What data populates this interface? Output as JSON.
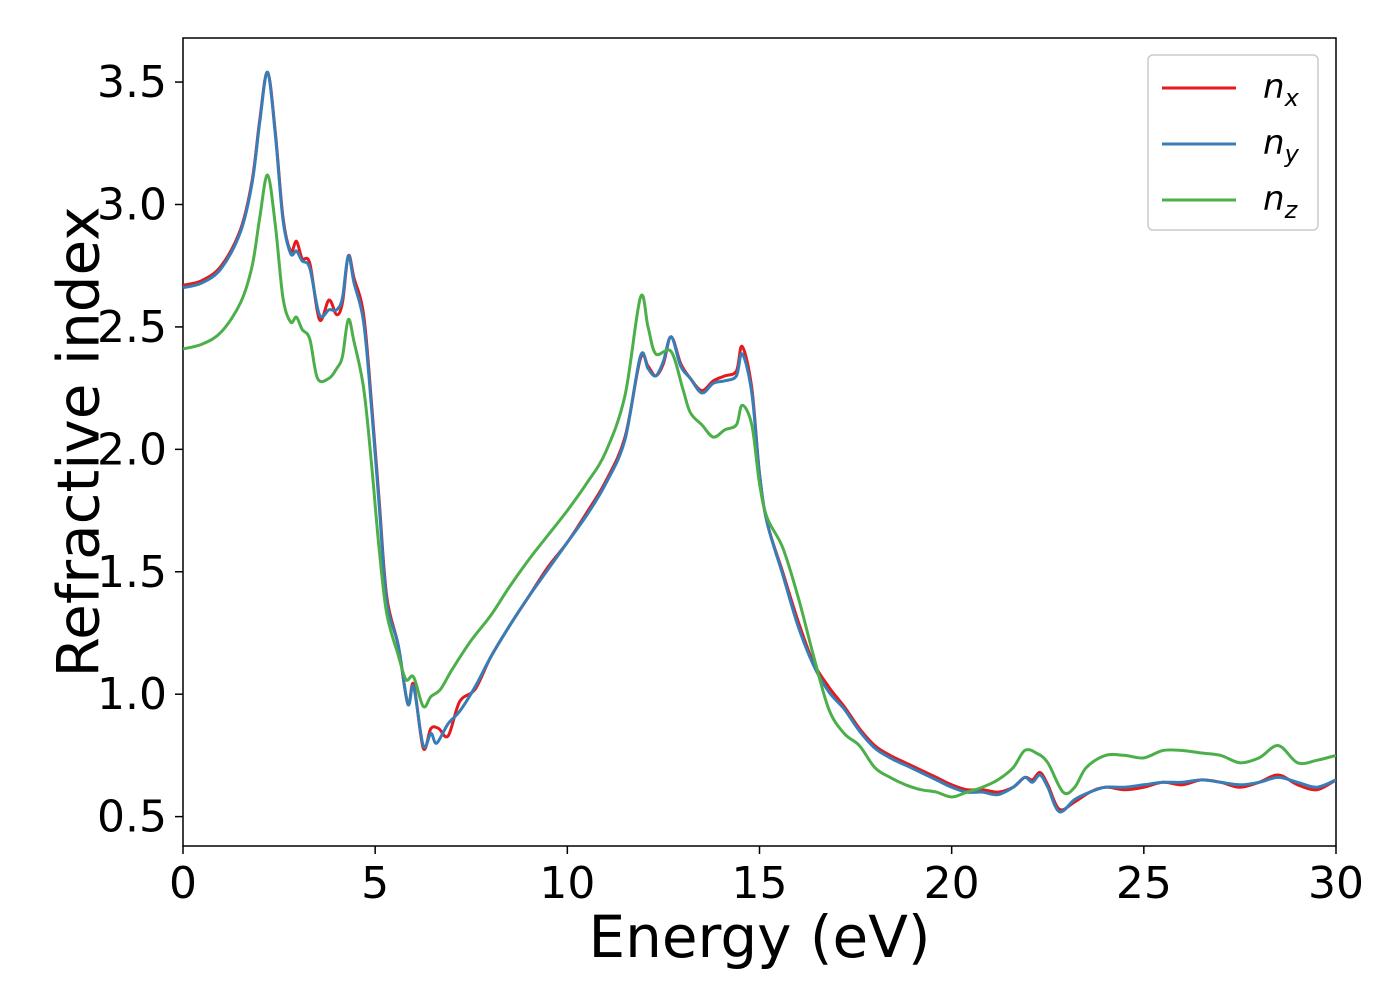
{
  "chart_data": {
    "type": "line",
    "title": "",
    "xlabel": "Energy (eV)",
    "ylabel": "Refractive index",
    "xlim": [
      0,
      30
    ],
    "ylim": [
      0.38,
      3.68
    ],
    "xticks": [
      0,
      5,
      10,
      15,
      20,
      25,
      30
    ],
    "yticks": [
      0.5,
      1.0,
      1.5,
      2.0,
      2.5,
      3.0,
      3.5
    ],
    "grid": false,
    "legend_position": "top-right",
    "series": [
      {
        "name": "n",
        "subscript": "x",
        "color": "#e41a1c",
        "points": [
          [
            0,
            2.67
          ],
          [
            0.5,
            2.69
          ],
          [
            1.0,
            2.75
          ],
          [
            1.5,
            2.9
          ],
          [
            1.8,
            3.1
          ],
          [
            2.0,
            3.35
          ],
          [
            2.2,
            3.54
          ],
          [
            2.4,
            3.3
          ],
          [
            2.6,
            2.95
          ],
          [
            2.8,
            2.81
          ],
          [
            2.95,
            2.85
          ],
          [
            3.1,
            2.78
          ],
          [
            3.3,
            2.76
          ],
          [
            3.55,
            2.53
          ],
          [
            3.8,
            2.61
          ],
          [
            4.0,
            2.55
          ],
          [
            4.15,
            2.6
          ],
          [
            4.3,
            2.79
          ],
          [
            4.45,
            2.7
          ],
          [
            4.7,
            2.55
          ],
          [
            4.9,
            2.2
          ],
          [
            5.1,
            1.8
          ],
          [
            5.3,
            1.4
          ],
          [
            5.6,
            1.2
          ],
          [
            5.85,
            0.96
          ],
          [
            6.0,
            1.04
          ],
          [
            6.25,
            0.78
          ],
          [
            6.45,
            0.86
          ],
          [
            6.65,
            0.86
          ],
          [
            6.9,
            0.83
          ],
          [
            7.2,
            0.97
          ],
          [
            7.6,
            1.02
          ],
          [
            8.0,
            1.15
          ],
          [
            8.5,
            1.28
          ],
          [
            9.0,
            1.4
          ],
          [
            9.5,
            1.52
          ],
          [
            10.0,
            1.62
          ],
          [
            10.5,
            1.74
          ],
          [
            11.0,
            1.87
          ],
          [
            11.5,
            2.05
          ],
          [
            11.9,
            2.37
          ],
          [
            12.1,
            2.34
          ],
          [
            12.3,
            2.3
          ],
          [
            12.5,
            2.35
          ],
          [
            12.7,
            2.46
          ],
          [
            12.95,
            2.35
          ],
          [
            13.2,
            2.29
          ],
          [
            13.5,
            2.24
          ],
          [
            13.8,
            2.28
          ],
          [
            14.1,
            2.3
          ],
          [
            14.4,
            2.32
          ],
          [
            14.55,
            2.42
          ],
          [
            14.8,
            2.25
          ],
          [
            15.0,
            1.9
          ],
          [
            15.2,
            1.7
          ],
          [
            15.6,
            1.5
          ],
          [
            16.0,
            1.3
          ],
          [
            16.4,
            1.13
          ],
          [
            16.8,
            1.03
          ],
          [
            17.2,
            0.95
          ],
          [
            17.6,
            0.86
          ],
          [
            18.0,
            0.79
          ],
          [
            18.4,
            0.75
          ],
          [
            18.8,
            0.72
          ],
          [
            19.2,
            0.69
          ],
          [
            19.6,
            0.66
          ],
          [
            20.0,
            0.63
          ],
          [
            20.4,
            0.61
          ],
          [
            20.8,
            0.61
          ],
          [
            21.2,
            0.6
          ],
          [
            21.6,
            0.62
          ],
          [
            21.9,
            0.66
          ],
          [
            22.1,
            0.65
          ],
          [
            22.3,
            0.68
          ],
          [
            22.5,
            0.63
          ],
          [
            22.8,
            0.53
          ],
          [
            23.2,
            0.56
          ],
          [
            23.6,
            0.6
          ],
          [
            24.0,
            0.62
          ],
          [
            24.5,
            0.61
          ],
          [
            25.0,
            0.62
          ],
          [
            25.5,
            0.64
          ],
          [
            26.0,
            0.63
          ],
          [
            26.5,
            0.65
          ],
          [
            27.0,
            0.64
          ],
          [
            27.5,
            0.62
          ],
          [
            28.0,
            0.64
          ],
          [
            28.5,
            0.67
          ],
          [
            29.0,
            0.63
          ],
          [
            29.5,
            0.61
          ],
          [
            30.0,
            0.65
          ]
        ]
      },
      {
        "name": "n",
        "subscript": "y",
        "color": "#377eb8",
        "points": [
          [
            0,
            2.66
          ],
          [
            0.5,
            2.68
          ],
          [
            1.0,
            2.74
          ],
          [
            1.5,
            2.89
          ],
          [
            1.8,
            3.09
          ],
          [
            2.0,
            3.34
          ],
          [
            2.2,
            3.54
          ],
          [
            2.4,
            3.29
          ],
          [
            2.6,
            2.94
          ],
          [
            2.8,
            2.8
          ],
          [
            2.95,
            2.81
          ],
          [
            3.1,
            2.77
          ],
          [
            3.3,
            2.74
          ],
          [
            3.55,
            2.55
          ],
          [
            3.8,
            2.57
          ],
          [
            4.0,
            2.57
          ],
          [
            4.15,
            2.62
          ],
          [
            4.3,
            2.79
          ],
          [
            4.45,
            2.68
          ],
          [
            4.7,
            2.52
          ],
          [
            4.9,
            2.18
          ],
          [
            5.1,
            1.78
          ],
          [
            5.3,
            1.38
          ],
          [
            5.6,
            1.2
          ],
          [
            5.85,
            0.96
          ],
          [
            6.0,
            1.03
          ],
          [
            6.25,
            0.79
          ],
          [
            6.45,
            0.84
          ],
          [
            6.6,
            0.8
          ],
          [
            6.9,
            0.88
          ],
          [
            7.2,
            0.93
          ],
          [
            7.6,
            1.03
          ],
          [
            8.0,
            1.15
          ],
          [
            8.5,
            1.28
          ],
          [
            9.0,
            1.4
          ],
          [
            9.5,
            1.51
          ],
          [
            10.0,
            1.62
          ],
          [
            10.5,
            1.73
          ],
          [
            11.0,
            1.86
          ],
          [
            11.5,
            2.04
          ],
          [
            11.9,
            2.38
          ],
          [
            12.1,
            2.33
          ],
          [
            12.3,
            2.3
          ],
          [
            12.5,
            2.36
          ],
          [
            12.7,
            2.46
          ],
          [
            12.95,
            2.34
          ],
          [
            13.2,
            2.29
          ],
          [
            13.5,
            2.23
          ],
          [
            13.8,
            2.27
          ],
          [
            14.1,
            2.28
          ],
          [
            14.4,
            2.3
          ],
          [
            14.55,
            2.39
          ],
          [
            14.8,
            2.23
          ],
          [
            15.0,
            1.9
          ],
          [
            15.2,
            1.7
          ],
          [
            15.6,
            1.49
          ],
          [
            16.0,
            1.28
          ],
          [
            16.4,
            1.12
          ],
          [
            16.8,
            1.01
          ],
          [
            17.2,
            0.94
          ],
          [
            17.6,
            0.85
          ],
          [
            18.0,
            0.78
          ],
          [
            18.4,
            0.74
          ],
          [
            18.8,
            0.71
          ],
          [
            19.2,
            0.68
          ],
          [
            19.6,
            0.65
          ],
          [
            20.0,
            0.62
          ],
          [
            20.4,
            0.6
          ],
          [
            20.8,
            0.6
          ],
          [
            21.2,
            0.59
          ],
          [
            21.6,
            0.62
          ],
          [
            21.9,
            0.66
          ],
          [
            22.1,
            0.64
          ],
          [
            22.3,
            0.67
          ],
          [
            22.5,
            0.62
          ],
          [
            22.8,
            0.52
          ],
          [
            23.2,
            0.57
          ],
          [
            23.6,
            0.6
          ],
          [
            24.0,
            0.62
          ],
          [
            24.5,
            0.62
          ],
          [
            25.0,
            0.63
          ],
          [
            25.5,
            0.64
          ],
          [
            26.0,
            0.64
          ],
          [
            26.5,
            0.65
          ],
          [
            27.0,
            0.64
          ],
          [
            27.5,
            0.63
          ],
          [
            28.0,
            0.64
          ],
          [
            28.5,
            0.66
          ],
          [
            29.0,
            0.64
          ],
          [
            29.5,
            0.62
          ],
          [
            30.0,
            0.65
          ]
        ]
      },
      {
        "name": "n",
        "subscript": "z",
        "color": "#4daf4a",
        "points": [
          [
            0,
            2.41
          ],
          [
            0.5,
            2.43
          ],
          [
            1.0,
            2.48
          ],
          [
            1.5,
            2.6
          ],
          [
            1.8,
            2.75
          ],
          [
            2.0,
            2.95
          ],
          [
            2.2,
            3.12
          ],
          [
            2.4,
            2.92
          ],
          [
            2.6,
            2.62
          ],
          [
            2.8,
            2.52
          ],
          [
            2.95,
            2.54
          ],
          [
            3.1,
            2.49
          ],
          [
            3.3,
            2.45
          ],
          [
            3.5,
            2.29
          ],
          [
            3.8,
            2.29
          ],
          [
            4.0,
            2.33
          ],
          [
            4.15,
            2.38
          ],
          [
            4.3,
            2.53
          ],
          [
            4.45,
            2.44
          ],
          [
            4.7,
            2.25
          ],
          [
            4.9,
            1.95
          ],
          [
            5.1,
            1.6
          ],
          [
            5.3,
            1.33
          ],
          [
            5.6,
            1.16
          ],
          [
            5.8,
            1.06
          ],
          [
            6.0,
            1.07
          ],
          [
            6.25,
            0.95
          ],
          [
            6.45,
            0.99
          ],
          [
            6.7,
            1.02
          ],
          [
            7.0,
            1.1
          ],
          [
            7.5,
            1.22
          ],
          [
            8.0,
            1.32
          ],
          [
            8.5,
            1.44
          ],
          [
            9.0,
            1.55
          ],
          [
            9.5,
            1.65
          ],
          [
            10.0,
            1.75
          ],
          [
            10.5,
            1.86
          ],
          [
            11.0,
            1.99
          ],
          [
            11.5,
            2.22
          ],
          [
            11.9,
            2.62
          ],
          [
            12.1,
            2.5
          ],
          [
            12.3,
            2.39
          ],
          [
            12.7,
            2.4
          ],
          [
            13.0,
            2.25
          ],
          [
            13.2,
            2.15
          ],
          [
            13.5,
            2.1
          ],
          [
            13.8,
            2.05
          ],
          [
            14.1,
            2.08
          ],
          [
            14.4,
            2.1
          ],
          [
            14.55,
            2.18
          ],
          [
            14.8,
            2.1
          ],
          [
            15.0,
            1.86
          ],
          [
            15.2,
            1.72
          ],
          [
            15.6,
            1.6
          ],
          [
            16.0,
            1.4
          ],
          [
            16.4,
            1.16
          ],
          [
            16.8,
            0.94
          ],
          [
            17.2,
            0.84
          ],
          [
            17.6,
            0.79
          ],
          [
            18.0,
            0.7
          ],
          [
            18.4,
            0.66
          ],
          [
            18.8,
            0.63
          ],
          [
            19.2,
            0.61
          ],
          [
            19.6,
            0.6
          ],
          [
            20.0,
            0.58
          ],
          [
            20.4,
            0.6
          ],
          [
            20.8,
            0.62
          ],
          [
            21.2,
            0.65
          ],
          [
            21.6,
            0.7
          ],
          [
            21.9,
            0.77
          ],
          [
            22.2,
            0.76
          ],
          [
            22.5,
            0.72
          ],
          [
            22.9,
            0.6
          ],
          [
            23.2,
            0.62
          ],
          [
            23.5,
            0.7
          ],
          [
            24.0,
            0.75
          ],
          [
            24.5,
            0.75
          ],
          [
            25.0,
            0.74
          ],
          [
            25.5,
            0.77
          ],
          [
            26.0,
            0.77
          ],
          [
            26.5,
            0.76
          ],
          [
            27.0,
            0.75
          ],
          [
            27.5,
            0.72
          ],
          [
            28.0,
            0.74
          ],
          [
            28.5,
            0.79
          ],
          [
            29.0,
            0.72
          ],
          [
            29.5,
            0.73
          ],
          [
            30.0,
            0.75
          ]
        ]
      }
    ]
  }
}
